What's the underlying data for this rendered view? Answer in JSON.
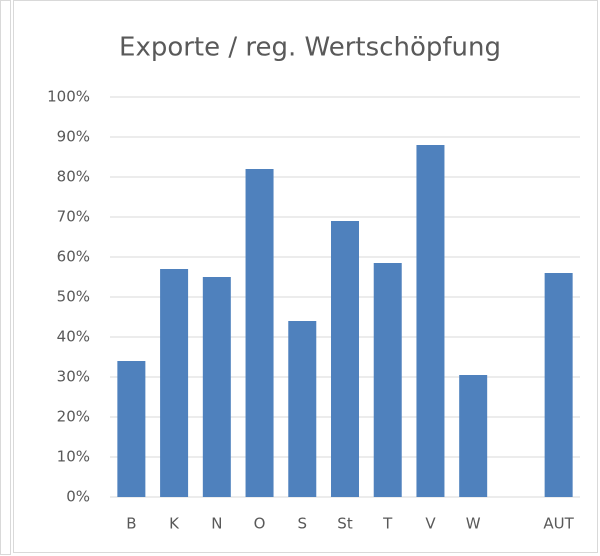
{
  "chart_data": {
    "type": "bar",
    "title": "Exporte / reg. Wertschöpfung",
    "categories": [
      "B",
      "K",
      "N",
      "O",
      "S",
      "St",
      "T",
      "V",
      "W",
      null,
      "AUT"
    ],
    "values": [
      34,
      57,
      55,
      82,
      44,
      69,
      58.5,
      88,
      30.5,
      null,
      56
    ],
    "color": "#4f81bd",
    "ylim": [
      0,
      100
    ],
    "yticks": [
      {
        "value": 0,
        "label": "0%"
      },
      {
        "value": 10,
        "label": "10%"
      },
      {
        "value": 20,
        "label": "20%"
      },
      {
        "value": 30,
        "label": "30%"
      },
      {
        "value": 40,
        "label": "40%"
      },
      {
        "value": 50,
        "label": "50%"
      },
      {
        "value": 60,
        "label": "60%"
      },
      {
        "value": 70,
        "label": "70%"
      },
      {
        "value": 80,
        "label": "80%"
      },
      {
        "value": 90,
        "label": "90%"
      },
      {
        "value": 100,
        "label": "100%"
      }
    ],
    "grid": true
  }
}
